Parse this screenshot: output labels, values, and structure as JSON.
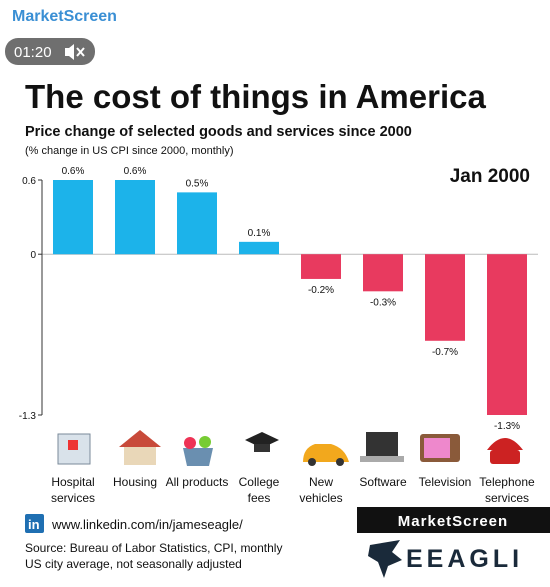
{
  "header": {
    "channel": "MarketScreen",
    "duration": "01:20"
  },
  "chart_data": {
    "type": "bar",
    "title": "The cost of things in America",
    "subtitle": "Price change of selected goods and services since 2000",
    "note": "(% change in US CPI since 2000, monthly)",
    "annotation": "Jan 2000",
    "categories": [
      "Hospital services",
      "Housing",
      "All products",
      "College fees",
      "New vehicles",
      "Software",
      "Television",
      "Telephone services"
    ],
    "values": [
      0.6,
      0.6,
      0.5,
      0.1,
      -0.2,
      -0.3,
      -0.7,
      -1.3
    ],
    "value_labels": [
      "0.6%",
      "0.6%",
      "0.5%",
      "0.1%",
      "-0.2%",
      "-0.3%",
      "-0.7%",
      "-1.3%"
    ],
    "positive_color": "#1cb3ea",
    "negative_color": "#e83a5f",
    "ylim": [
      -1.3,
      0.6
    ],
    "yticks": [
      0.6,
      0,
      -1.3
    ]
  },
  "footer": {
    "link": "www.linkedin.com/in/jameseagle/",
    "source": [
      "Source: Bureau of Labor Statistics, CPI, monthly",
      "US city average, not seasonally adjusted"
    ],
    "brand": "MarketScreen",
    "logo": "EEAGLI"
  }
}
